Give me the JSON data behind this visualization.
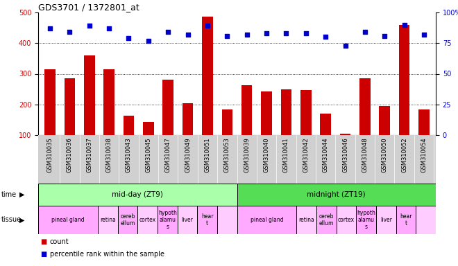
{
  "title": "GDS3701 / 1372801_at",
  "categories": [
    "GSM310035",
    "GSM310036",
    "GSM310037",
    "GSM310038",
    "GSM310043",
    "GSM310045",
    "GSM310047",
    "GSM310049",
    "GSM310051",
    "GSM310053",
    "GSM310039",
    "GSM310040",
    "GSM310041",
    "GSM310042",
    "GSM310044",
    "GSM310046",
    "GSM310048",
    "GSM310050",
    "GSM310052",
    "GSM310054"
  ],
  "bar_values": [
    315,
    285,
    360,
    315,
    163,
    143,
    280,
    205,
    487,
    183,
    263,
    243,
    250,
    247,
    170,
    105,
    285,
    195,
    460,
    183
  ],
  "dot_values": [
    87,
    84,
    89,
    87,
    79,
    77,
    84,
    82,
    89,
    81,
    82,
    83,
    83,
    83,
    80,
    73,
    84,
    81,
    90,
    82
  ],
  "ylim_left": [
    100,
    500
  ],
  "ylim_right": [
    0,
    100
  ],
  "yticks_left": [
    100,
    200,
    300,
    400,
    500
  ],
  "yticks_right": [
    0,
    25,
    50,
    75,
    100
  ],
  "bar_color": "#cc0000",
  "dot_color": "#0000cc",
  "bg_color": "#ffffff",
  "xtick_bg": "#d0d0d0",
  "time_row": [
    {
      "label": "mid-day (ZT9)",
      "start": 0,
      "end": 10,
      "color": "#aaffaa"
    },
    {
      "label": "midnight (ZT19)",
      "start": 10,
      "end": 20,
      "color": "#55dd55"
    }
  ],
  "tissue_groups": [
    {
      "label": "pineal gland",
      "start": 0,
      "end": 3,
      "color": "#ffaaff"
    },
    {
      "label": "retina",
      "start": 3,
      "end": 4,
      "color": "#ffccff"
    },
    {
      "label": "cereb\nellum",
      "start": 4,
      "end": 5,
      "color": "#ffaaff"
    },
    {
      "label": "cortex",
      "start": 5,
      "end": 6,
      "color": "#ffccff"
    },
    {
      "label": "hypoth\nalamu\ns",
      "start": 6,
      "end": 7,
      "color": "#ffaaff"
    },
    {
      "label": "liver",
      "start": 7,
      "end": 8,
      "color": "#ffccff"
    },
    {
      "label": "hear\nt",
      "start": 8,
      "end": 9,
      "color": "#ffaaff"
    },
    {
      "label": "",
      "start": 9,
      "end": 10,
      "color": "#ffccff"
    },
    {
      "label": "pineal gland",
      "start": 10,
      "end": 13,
      "color": "#ffaaff"
    },
    {
      "label": "retina",
      "start": 13,
      "end": 14,
      "color": "#ffccff"
    },
    {
      "label": "cereb\nellum",
      "start": 14,
      "end": 15,
      "color": "#ffaaff"
    },
    {
      "label": "cortex",
      "start": 15,
      "end": 16,
      "color": "#ffccff"
    },
    {
      "label": "hypoth\nalamu\ns",
      "start": 16,
      "end": 17,
      "color": "#ffaaff"
    },
    {
      "label": "liver",
      "start": 17,
      "end": 18,
      "color": "#ffccff"
    },
    {
      "label": "hear\nt",
      "start": 18,
      "end": 19,
      "color": "#ffaaff"
    },
    {
      "label": "",
      "start": 19,
      "end": 20,
      "color": "#ffccff"
    }
  ]
}
